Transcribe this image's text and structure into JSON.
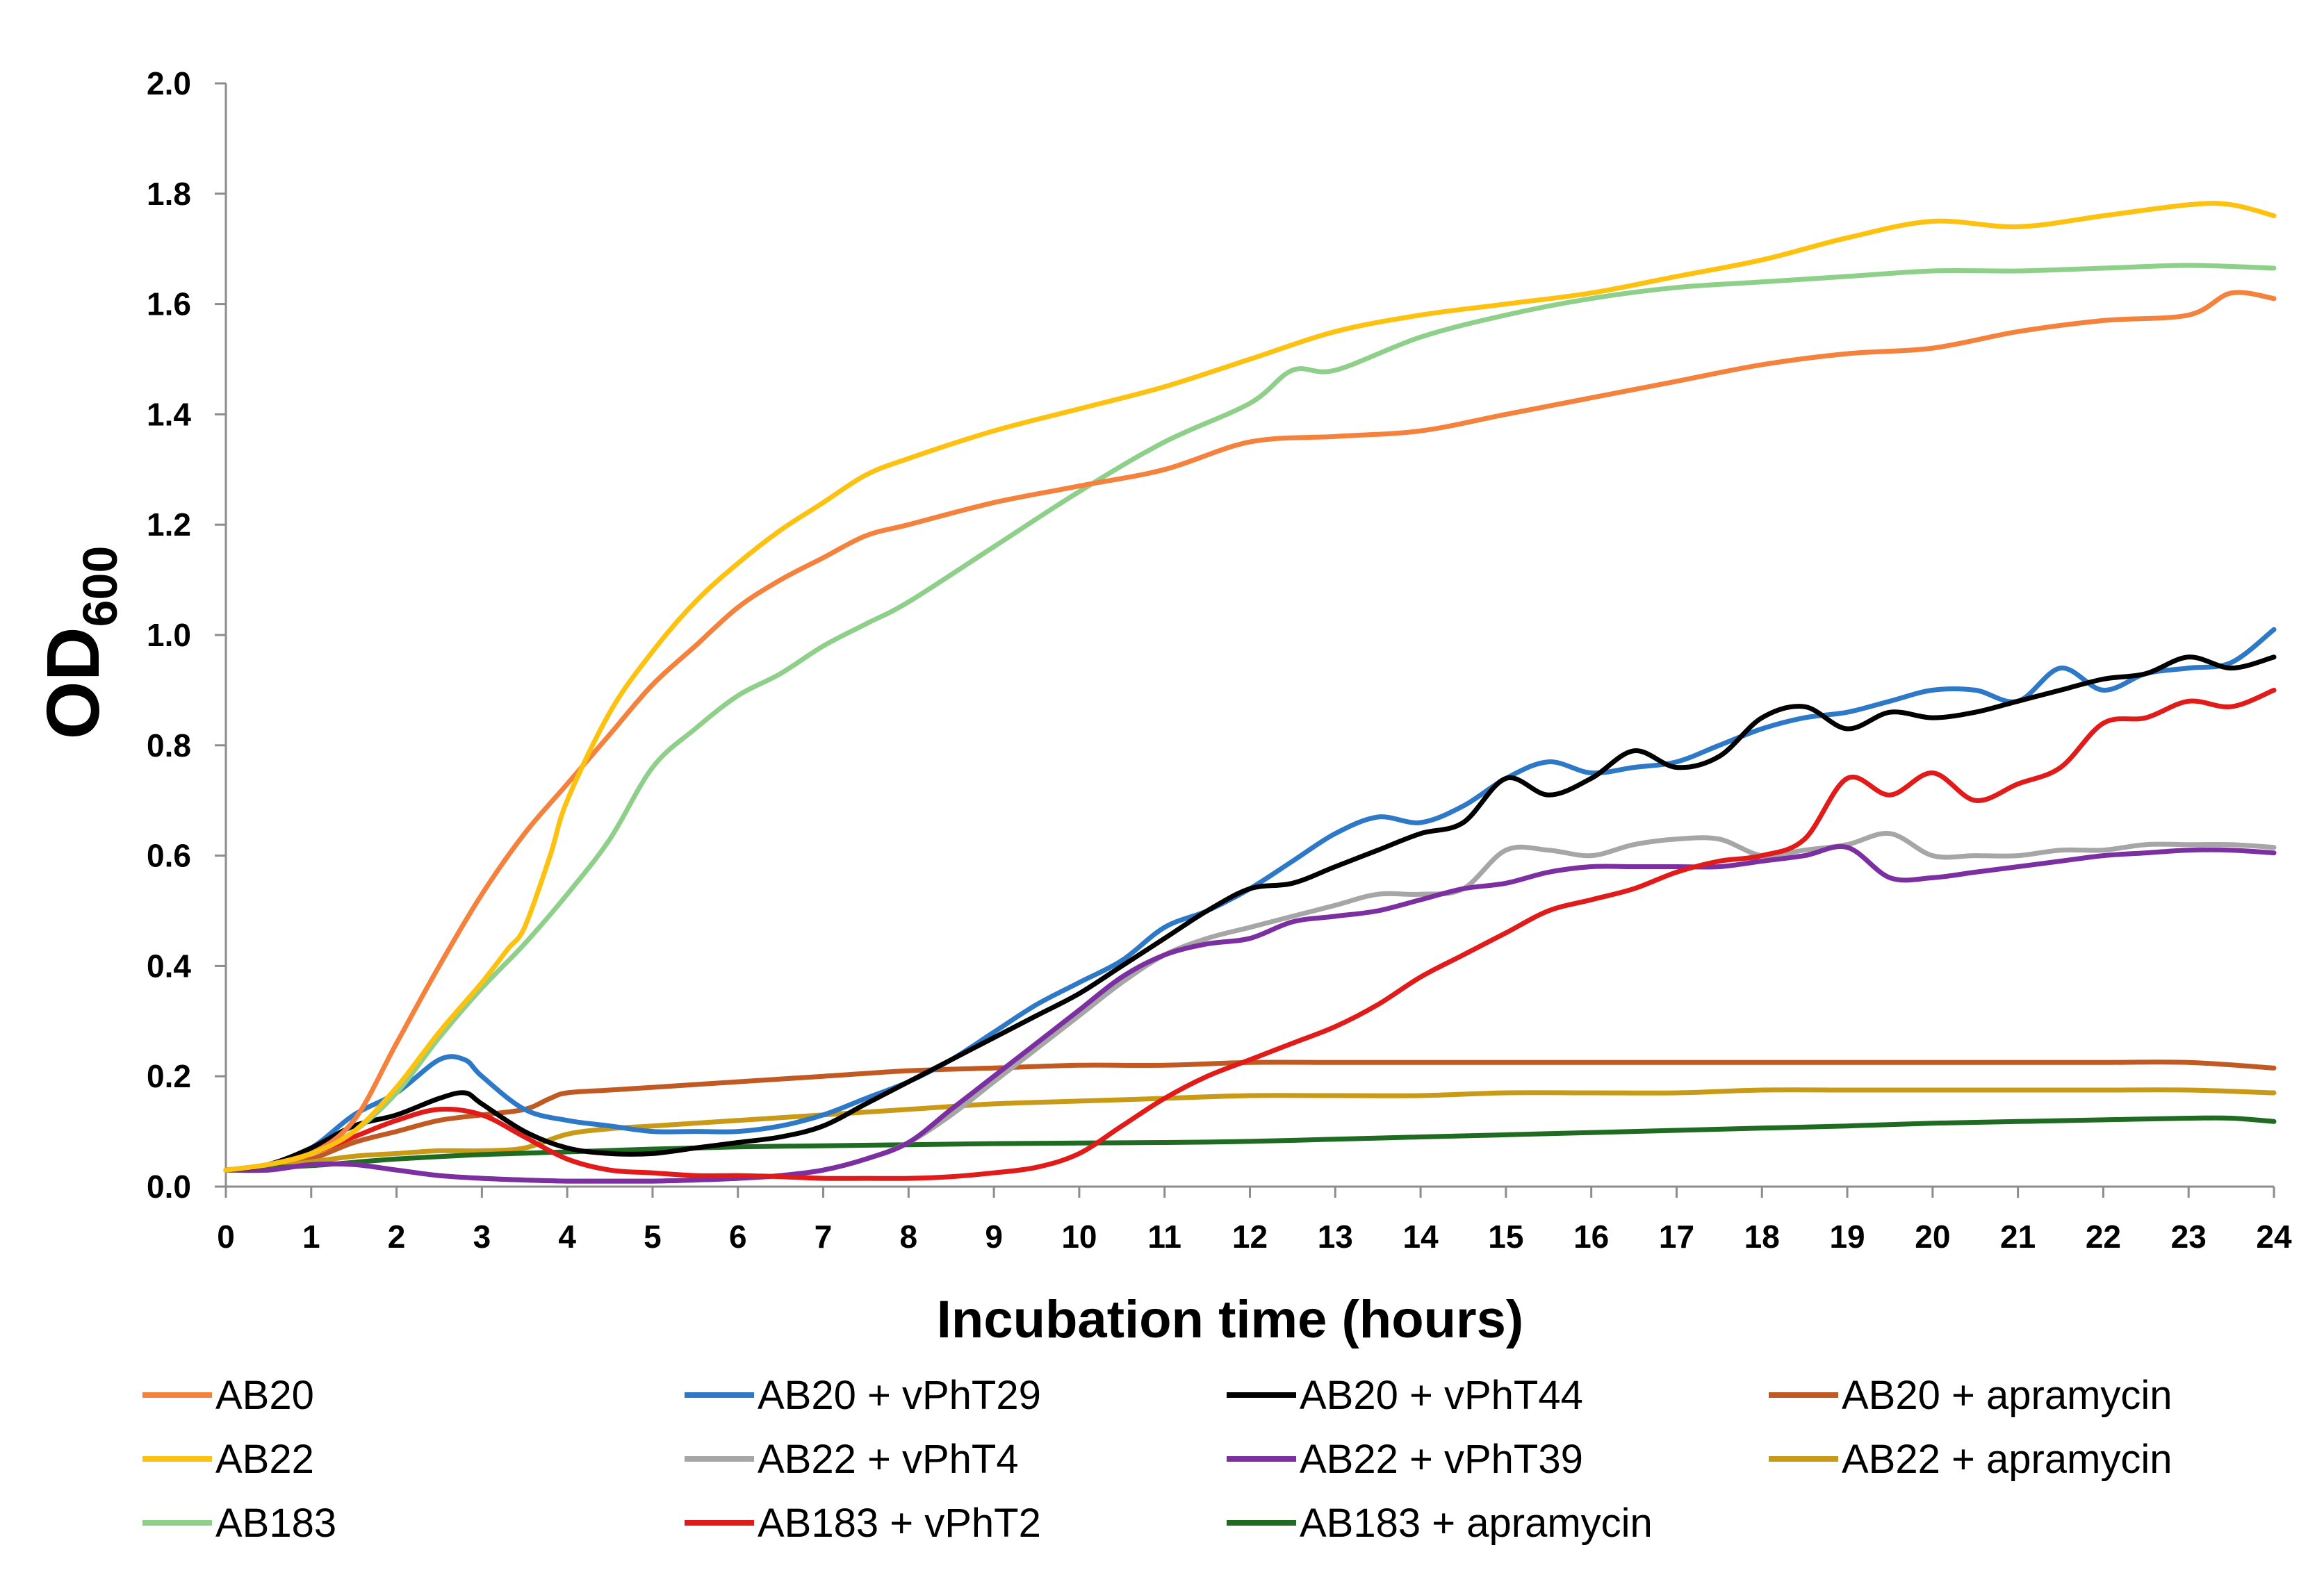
{
  "chart_data": {
    "type": "line",
    "title": "",
    "xlabel": "Incubation time (hours)",
    "ylabel": "OD",
    "ylabel_subscript": "600",
    "xlim": [
      0,
      24
    ],
    "ylim": [
      0,
      2.0
    ],
    "xticks": [
      0,
      1,
      2,
      3,
      4,
      5,
      6,
      7,
      8,
      9,
      10,
      11,
      12,
      13,
      14,
      15,
      16,
      17,
      18,
      19,
      20,
      21,
      22,
      23,
      24
    ],
    "yticks": [
      "0.0",
      "0.2",
      "0.4",
      "0.6",
      "0.8",
      "1.0",
      "1.2",
      "1.4",
      "1.6",
      "1.8",
      "2.0"
    ],
    "grid": false,
    "legend_position": "bottom",
    "series": [
      {
        "name": "AB20",
        "color": "#F4813C",
        "x": [
          0,
          0.5,
          1,
          1.5,
          2,
          2.5,
          3,
          3.5,
          4,
          4.5,
          5,
          5.5,
          6,
          6.5,
          7,
          7.5,
          8,
          9,
          10,
          11,
          12,
          13,
          14,
          15,
          16,
          17,
          18,
          19,
          20,
          21,
          22,
          23,
          23.5,
          24
        ],
        "y": [
          0.03,
          0.04,
          0.06,
          0.12,
          0.26,
          0.4,
          0.53,
          0.64,
          0.73,
          0.82,
          0.91,
          0.98,
          1.05,
          1.1,
          1.14,
          1.18,
          1.2,
          1.24,
          1.27,
          1.3,
          1.35,
          1.36,
          1.37,
          1.4,
          1.43,
          1.46,
          1.49,
          1.51,
          1.52,
          1.55,
          1.57,
          1.58,
          1.62,
          1.61
        ]
      },
      {
        "name": "AB20 + vPhT29",
        "color": "#2E78C8",
        "x": [
          0,
          0.5,
          1,
          1.5,
          2,
          2.5,
          2.8,
          3,
          3.5,
          4,
          4.5,
          5,
          5.5,
          6,
          6.5,
          7,
          7.5,
          8,
          8.5,
          9,
          9.5,
          10,
          10.5,
          11,
          11.5,
          12,
          12.5,
          13,
          13.5,
          14,
          14.5,
          15,
          15.5,
          16,
          16.5,
          17,
          17.5,
          18,
          18.5,
          19,
          19.5,
          20,
          20.5,
          21,
          21.5,
          22,
          22.5,
          23,
          23.5,
          24
        ],
        "y": [
          0.03,
          0.04,
          0.07,
          0.13,
          0.17,
          0.23,
          0.23,
          0.2,
          0.14,
          0.12,
          0.11,
          0.1,
          0.1,
          0.1,
          0.11,
          0.13,
          0.16,
          0.19,
          0.23,
          0.28,
          0.33,
          0.37,
          0.41,
          0.47,
          0.5,
          0.54,
          0.59,
          0.64,
          0.67,
          0.66,
          0.69,
          0.74,
          0.77,
          0.75,
          0.76,
          0.77,
          0.8,
          0.83,
          0.85,
          0.86,
          0.88,
          0.9,
          0.9,
          0.88,
          0.94,
          0.9,
          0.93,
          0.94,
          0.95,
          1.01
        ]
      },
      {
        "name": "AB20 + vPhT44",
        "color": "#000000",
        "x": [
          0,
          0.5,
          1,
          1.5,
          2,
          2.5,
          2.8,
          3,
          3.5,
          4,
          4.5,
          5,
          5.5,
          6,
          6.5,
          7,
          7.5,
          8,
          8.5,
          9,
          9.5,
          10,
          10.5,
          11,
          11.5,
          12,
          12.5,
          13,
          13.5,
          14,
          14.5,
          15,
          15.5,
          16,
          16.5,
          17,
          17.5,
          18,
          18.5,
          19,
          19.5,
          20,
          20.5,
          21,
          21.5,
          22,
          22.5,
          23,
          23.5,
          24
        ],
        "y": [
          0.03,
          0.04,
          0.07,
          0.11,
          0.13,
          0.16,
          0.17,
          0.15,
          0.1,
          0.07,
          0.06,
          0.06,
          0.07,
          0.08,
          0.09,
          0.11,
          0.15,
          0.19,
          0.23,
          0.27,
          0.31,
          0.35,
          0.4,
          0.45,
          0.5,
          0.54,
          0.55,
          0.58,
          0.61,
          0.64,
          0.66,
          0.74,
          0.71,
          0.74,
          0.79,
          0.76,
          0.78,
          0.85,
          0.87,
          0.83,
          0.86,
          0.85,
          0.86,
          0.88,
          0.9,
          0.92,
          0.93,
          0.96,
          0.94,
          0.96
        ]
      },
      {
        "name": "AB20 + apramycin",
        "color": "#C05A22",
        "x": [
          0,
          0.5,
          1,
          1.5,
          2,
          2.5,
          3,
          3.5,
          3.8,
          4,
          4.5,
          5,
          6,
          7,
          8,
          9,
          10,
          11,
          12,
          13,
          14,
          15,
          16,
          17,
          18,
          19,
          20,
          21,
          22,
          23,
          24
        ],
        "y": [
          0.03,
          0.035,
          0.05,
          0.08,
          0.1,
          0.12,
          0.13,
          0.14,
          0.16,
          0.17,
          0.175,
          0.18,
          0.19,
          0.2,
          0.21,
          0.215,
          0.22,
          0.22,
          0.225,
          0.225,
          0.225,
          0.225,
          0.225,
          0.225,
          0.225,
          0.225,
          0.225,
          0.225,
          0.225,
          0.225,
          0.215
        ]
      },
      {
        "name": "AB22",
        "color": "#FDC10F",
        "x": [
          0,
          0.5,
          1,
          1.5,
          2,
          2.5,
          3,
          3.3,
          3.5,
          3.8,
          4,
          4.5,
          5,
          5.5,
          6,
          6.5,
          7,
          7.5,
          8,
          9,
          10,
          11,
          12,
          13,
          14,
          15,
          16,
          17,
          18,
          19,
          20,
          21,
          22,
          23,
          23.5,
          24
        ],
        "y": [
          0.03,
          0.04,
          0.06,
          0.1,
          0.18,
          0.28,
          0.37,
          0.43,
          0.47,
          0.6,
          0.7,
          0.86,
          0.97,
          1.06,
          1.13,
          1.19,
          1.24,
          1.29,
          1.32,
          1.37,
          1.41,
          1.45,
          1.5,
          1.55,
          1.58,
          1.6,
          1.62,
          1.65,
          1.68,
          1.72,
          1.75,
          1.74,
          1.76,
          1.78,
          1.78,
          1.76
        ]
      },
      {
        "name": "AB22 + vPhT4",
        "color": "#A6A6A6",
        "x": [
          0,
          0.5,
          1,
          1.5,
          2,
          2.5,
          3,
          3.5,
          4,
          4.5,
          5,
          5.5,
          6,
          6.5,
          7,
          7.5,
          8,
          8.5,
          9,
          9.5,
          10,
          10.5,
          11,
          11.5,
          12,
          12.5,
          13,
          13.5,
          14,
          14.5,
          15,
          15.5,
          16,
          16.5,
          17,
          17.5,
          18,
          18.5,
          19,
          19.5,
          20,
          20.5,
          21,
          21.5,
          22,
          22.5,
          23,
          23.5,
          24
        ],
        "y": [
          0.03,
          0.03,
          0.04,
          0.04,
          0.03,
          0.02,
          0.015,
          0.012,
          0.01,
          0.01,
          0.01,
          0.012,
          0.015,
          0.02,
          0.03,
          0.05,
          0.08,
          0.13,
          0.19,
          0.25,
          0.31,
          0.37,
          0.42,
          0.45,
          0.47,
          0.49,
          0.51,
          0.53,
          0.53,
          0.54,
          0.61,
          0.61,
          0.6,
          0.62,
          0.63,
          0.63,
          0.6,
          0.61,
          0.62,
          0.64,
          0.6,
          0.6,
          0.6,
          0.61,
          0.61,
          0.62,
          0.62,
          0.62,
          0.615
        ]
      },
      {
        "name": "AB22 + vPhT39",
        "color": "#7B2FA0",
        "x": [
          0,
          0.5,
          1,
          1.5,
          2,
          2.5,
          3,
          3.5,
          4,
          4.5,
          5,
          5.5,
          6,
          6.5,
          7,
          7.5,
          8,
          8.5,
          9,
          9.5,
          10,
          10.5,
          11,
          11.5,
          12,
          12.5,
          13,
          13.5,
          14,
          14.5,
          15,
          15.5,
          16,
          16.5,
          17,
          17.5,
          18,
          18.5,
          19,
          19.5,
          20,
          20.5,
          21,
          21.5,
          22,
          22.5,
          23,
          23.5,
          24
        ],
        "y": [
          0.03,
          0.03,
          0.04,
          0.04,
          0.03,
          0.02,
          0.015,
          0.012,
          0.01,
          0.01,
          0.01,
          0.012,
          0.015,
          0.02,
          0.03,
          0.05,
          0.08,
          0.14,
          0.2,
          0.26,
          0.32,
          0.38,
          0.42,
          0.44,
          0.45,
          0.48,
          0.49,
          0.5,
          0.52,
          0.54,
          0.55,
          0.57,
          0.58,
          0.58,
          0.58,
          0.58,
          0.59,
          0.6,
          0.615,
          0.56,
          0.56,
          0.57,
          0.58,
          0.59,
          0.6,
          0.605,
          0.61,
          0.61,
          0.605
        ]
      },
      {
        "name": "AB22 + apramycin",
        "color": "#C99A15",
        "x": [
          0,
          0.5,
          1,
          1.5,
          2,
          2.5,
          3,
          3.5,
          4,
          4.5,
          5,
          6,
          7,
          8,
          9,
          10,
          11,
          12,
          13,
          14,
          15,
          16,
          17,
          18,
          19,
          20,
          21,
          22,
          23,
          24
        ],
        "y": [
          0.03,
          0.035,
          0.045,
          0.055,
          0.06,
          0.065,
          0.065,
          0.07,
          0.095,
          0.105,
          0.11,
          0.12,
          0.13,
          0.14,
          0.15,
          0.155,
          0.16,
          0.165,
          0.165,
          0.165,
          0.17,
          0.17,
          0.17,
          0.175,
          0.175,
          0.175,
          0.175,
          0.175,
          0.175,
          0.17
        ]
      },
      {
        "name": "AB183",
        "color": "#8ED08A",
        "x": [
          0,
          0.5,
          1,
          1.5,
          2,
          2.5,
          3,
          3.5,
          4,
          4.5,
          5,
          5.5,
          6,
          6.5,
          7,
          7.5,
          8,
          9,
          10,
          11,
          12,
          12.5,
          13,
          14,
          15,
          16,
          17,
          18,
          19,
          20,
          21,
          22,
          23,
          24
        ],
        "y": [
          0.03,
          0.04,
          0.06,
          0.1,
          0.17,
          0.27,
          0.36,
          0.44,
          0.53,
          0.63,
          0.76,
          0.83,
          0.89,
          0.93,
          0.98,
          1.02,
          1.06,
          1.16,
          1.26,
          1.35,
          1.42,
          1.48,
          1.48,
          1.54,
          1.58,
          1.61,
          1.63,
          1.64,
          1.65,
          1.66,
          1.66,
          1.665,
          1.67,
          1.665
        ]
      },
      {
        "name": "AB183 + vPhT2",
        "color": "#E11A1A",
        "x": [
          0,
          0.5,
          1,
          1.5,
          2,
          2.5,
          3,
          3.5,
          4,
          4.5,
          5,
          5.5,
          6,
          6.5,
          7,
          7.5,
          8,
          8.5,
          9,
          9.5,
          10,
          10.5,
          11,
          11.5,
          12,
          12.5,
          13,
          13.5,
          14,
          14.5,
          15,
          15.5,
          16,
          16.5,
          17,
          17.5,
          18,
          18.5,
          19,
          19.5,
          20,
          20.5,
          21,
          21.5,
          22,
          22.5,
          23,
          23.5,
          24
        ],
        "y": [
          0.03,
          0.04,
          0.06,
          0.09,
          0.12,
          0.14,
          0.13,
          0.09,
          0.05,
          0.03,
          0.025,
          0.02,
          0.02,
          0.018,
          0.015,
          0.015,
          0.015,
          0.018,
          0.025,
          0.035,
          0.06,
          0.11,
          0.16,
          0.2,
          0.23,
          0.26,
          0.29,
          0.33,
          0.38,
          0.42,
          0.46,
          0.5,
          0.52,
          0.54,
          0.57,
          0.59,
          0.6,
          0.63,
          0.74,
          0.71,
          0.75,
          0.7,
          0.73,
          0.76,
          0.84,
          0.85,
          0.88,
          0.87,
          0.9
        ]
      },
      {
        "name": "AB183 + apramycin",
        "color": "#1F6B21",
        "x": [
          0,
          1,
          2,
          3,
          4,
          5,
          6,
          7,
          8,
          9,
          10,
          11,
          12,
          13,
          14,
          15,
          16,
          17,
          18,
          19,
          20,
          21,
          22,
          23,
          23.5,
          24
        ],
        "y": [
          0.03,
          0.038,
          0.05,
          0.058,
          0.063,
          0.068,
          0.072,
          0.074,
          0.076,
          0.078,
          0.079,
          0.08,
          0.082,
          0.086,
          0.09,
          0.094,
          0.098,
          0.102,
          0.106,
          0.11,
          0.115,
          0.118,
          0.121,
          0.124,
          0.124,
          0.118
        ]
      }
    ]
  }
}
